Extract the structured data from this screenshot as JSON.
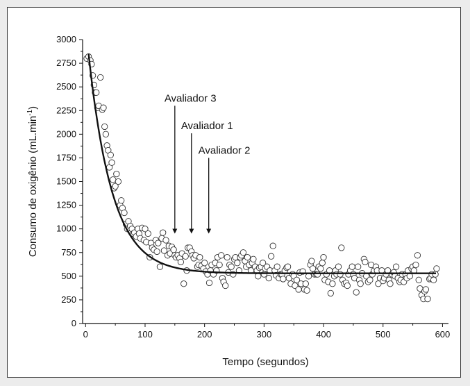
{
  "chart_data": {
    "type": "scatter",
    "title": "",
    "xlabel": "Tempo (segundos)",
    "ylabel_main": "Consumo de oxigênio (mL.min",
    "ylabel_sup": "-1",
    "ylabel_close": ")",
    "xlim": [
      -5,
      610
    ],
    "ylim": [
      0,
      3000
    ],
    "x_ticks": [
      0,
      100,
      200,
      300,
      400,
      500,
      600
    ],
    "y_ticks": [
      0,
      250,
      500,
      750,
      1000,
      1250,
      1500,
      1750,
      2000,
      2250,
      2500,
      2750,
      3000
    ],
    "grid": false,
    "fit_curve": {
      "baseline": 530,
      "amplitude": 2320,
      "tau": 40,
      "x_start": 5,
      "x_end": 590
    },
    "annotations": [
      {
        "text": "Avaliador 3",
        "x": 150,
        "y_top": 2300,
        "y_bottom": 950
      },
      {
        "text": "Avaliador 1",
        "x": 178,
        "y_top": 2010,
        "y_bottom": 950
      },
      {
        "text": "Avaliador 2",
        "x": 207,
        "y_top": 1750,
        "y_bottom": 950
      }
    ],
    "points": [
      [
        2,
        2800
      ],
      [
        5,
        2820
      ],
      [
        8,
        2780
      ],
      [
        10,
        2740
      ],
      [
        12,
        2620
      ],
      [
        14,
        2520
      ],
      [
        16,
        2440
      ],
      [
        18,
        2440
      ],
      [
        20,
        2280
      ],
      [
        22,
        2300
      ],
      [
        25,
        2600
      ],
      [
        28,
        2260
      ],
      [
        30,
        2280
      ],
      [
        32,
        2080
      ],
      [
        34,
        2000
      ],
      [
        36,
        1880
      ],
      [
        38,
        1830
      ],
      [
        40,
        1650
      ],
      [
        42,
        1780
      ],
      [
        44,
        1700
      ],
      [
        46,
        1520
      ],
      [
        48,
        1430
      ],
      [
        50,
        1450
      ],
      [
        52,
        1580
      ],
      [
        55,
        1500
      ],
      [
        58,
        1250
      ],
      [
        60,
        1300
      ],
      [
        62,
        1220
      ],
      [
        65,
        1170
      ],
      [
        68,
        1050
      ],
      [
        70,
        1000
      ],
      [
        72,
        1080
      ],
      [
        75,
        1030
      ],
      [
        78,
        1000
      ],
      [
        80,
        950
      ],
      [
        82,
        960
      ],
      [
        85,
        920
      ],
      [
        88,
        1000
      ],
      [
        90,
        950
      ],
      [
        92,
        900
      ],
      [
        95,
        1010
      ],
      [
        98,
        880
      ],
      [
        100,
        1000
      ],
      [
        102,
        860
      ],
      [
        105,
        950
      ],
      [
        108,
        700
      ],
      [
        110,
        850
      ],
      [
        112,
        800
      ],
      [
        115,
        780
      ],
      [
        118,
        880
      ],
      [
        120,
        760
      ],
      [
        122,
        850
      ],
      [
        125,
        600
      ],
      [
        128,
        900
      ],
      [
        130,
        960
      ],
      [
        132,
        770
      ],
      [
        135,
        880
      ],
      [
        138,
        720
      ],
      [
        140,
        820
      ],
      [
        142,
        740
      ],
      [
        145,
        810
      ],
      [
        148,
        780
      ],
      [
        150,
        720
      ],
      [
        152,
        700
      ],
      [
        155,
        720
      ],
      [
        158,
        690
      ],
      [
        160,
        650
      ],
      [
        162,
        740
      ],
      [
        165,
        420
      ],
      [
        168,
        710
      ],
      [
        170,
        560
      ],
      [
        172,
        800
      ],
      [
        175,
        800
      ],
      [
        178,
        760
      ],
      [
        180,
        720
      ],
      [
        182,
        690
      ],
      [
        185,
        720
      ],
      [
        188,
        600
      ],
      [
        190,
        620
      ],
      [
        192,
        700
      ],
      [
        195,
        610
      ],
      [
        198,
        580
      ],
      [
        200,
        640
      ],
      [
        202,
        550
      ],
      [
        205,
        520
      ],
      [
        208,
        430
      ],
      [
        210,
        560
      ],
      [
        212,
        620
      ],
      [
        215,
        520
      ],
      [
        218,
        640
      ],
      [
        220,
        560
      ],
      [
        222,
        700
      ],
      [
        225,
        620
      ],
      [
        228,
        720
      ],
      [
        230,
        480
      ],
      [
        232,
        440
      ],
      [
        235,
        400
      ],
      [
        238,
        700
      ],
      [
        240,
        540
      ],
      [
        242,
        620
      ],
      [
        245,
        600
      ],
      [
        248,
        520
      ],
      [
        250,
        680
      ],
      [
        252,
        700
      ],
      [
        255,
        640
      ],
      [
        258,
        560
      ],
      [
        260,
        700
      ],
      [
        262,
        720
      ],
      [
        265,
        750
      ],
      [
        268,
        660
      ],
      [
        270,
        600
      ],
      [
        272,
        700
      ],
      [
        275,
        620
      ],
      [
        278,
        560
      ],
      [
        280,
        640
      ],
      [
        282,
        680
      ],
      [
        285,
        600
      ],
      [
        288,
        560
      ],
      [
        290,
        500
      ],
      [
        292,
        590
      ],
      [
        295,
        600
      ],
      [
        298,
        640
      ],
      [
        300,
        520
      ],
      [
        302,
        580
      ],
      [
        305,
        600
      ],
      [
        308,
        480
      ],
      [
        310,
        560
      ],
      [
        312,
        710
      ],
      [
        315,
        820
      ],
      [
        318,
        560
      ],
      [
        320,
        510
      ],
      [
        322,
        600
      ],
      [
        325,
        480
      ],
      [
        328,
        520
      ],
      [
        330,
        520
      ],
      [
        332,
        470
      ],
      [
        335,
        560
      ],
      [
        338,
        590
      ],
      [
        340,
        600
      ],
      [
        342,
        480
      ],
      [
        345,
        420
      ],
      [
        348,
        520
      ],
      [
        350,
        500
      ],
      [
        352,
        400
      ],
      [
        355,
        460
      ],
      [
        358,
        360
      ],
      [
        360,
        540
      ],
      [
        362,
        420
      ],
      [
        365,
        550
      ],
      [
        368,
        360
      ],
      [
        370,
        420
      ],
      [
        372,
        350
      ],
      [
        375,
        500
      ],
      [
        378,
        620
      ],
      [
        380,
        660
      ],
      [
        382,
        580
      ],
      [
        385,
        520
      ],
      [
        388,
        520
      ],
      [
        390,
        520
      ],
      [
        392,
        600
      ],
      [
        395,
        580
      ],
      [
        398,
        640
      ],
      [
        400,
        700
      ],
      [
        402,
        460
      ],
      [
        405,
        520
      ],
      [
        408,
        440
      ],
      [
        410,
        560
      ],
      [
        412,
        320
      ],
      [
        415,
        420
      ],
      [
        418,
        500
      ],
      [
        420,
        560
      ],
      [
        422,
        520
      ],
      [
        425,
        600
      ],
      [
        428,
        520
      ],
      [
        430,
        800
      ],
      [
        432,
        460
      ],
      [
        435,
        420
      ],
      [
        438,
        430
      ],
      [
        440,
        400
      ],
      [
        442,
        520
      ],
      [
        445,
        560
      ],
      [
        448,
        600
      ],
      [
        450,
        520
      ],
      [
        452,
        480
      ],
      [
        455,
        330
      ],
      [
        458,
        600
      ],
      [
        460,
        460
      ],
      [
        462,
        420
      ],
      [
        465,
        530
      ],
      [
        468,
        680
      ],
      [
        470,
        650
      ],
      [
        472,
        500
      ],
      [
        475,
        440
      ],
      [
        478,
        460
      ],
      [
        480,
        620
      ],
      [
        482,
        520
      ],
      [
        485,
        560
      ],
      [
        488,
        600
      ],
      [
        490,
        560
      ],
      [
        492,
        420
      ],
      [
        495,
        480
      ],
      [
        498,
        560
      ],
      [
        500,
        450
      ],
      [
        502,
        480
      ],
      [
        505,
        520
      ],
      [
        508,
        560
      ],
      [
        510,
        460
      ],
      [
        512,
        420
      ],
      [
        515,
        520
      ],
      [
        518,
        540
      ],
      [
        520,
        500
      ],
      [
        522,
        600
      ],
      [
        525,
        480
      ],
      [
        528,
        440
      ],
      [
        530,
        460
      ],
      [
        532,
        520
      ],
      [
        535,
        440
      ],
      [
        538,
        520
      ],
      [
        540,
        480
      ],
      [
        542,
        560
      ],
      [
        545,
        500
      ],
      [
        548,
        580
      ],
      [
        550,
        600
      ],
      [
        552,
        560
      ],
      [
        555,
        620
      ],
      [
        558,
        720
      ],
      [
        560,
        460
      ],
      [
        562,
        370
      ],
      [
        565,
        300
      ],
      [
        568,
        260
      ],
      [
        570,
        340
      ],
      [
        572,
        360
      ],
      [
        575,
        260
      ],
      [
        578,
        470
      ],
      [
        580,
        480
      ],
      [
        582,
        520
      ],
      [
        585,
        460
      ],
      [
        588,
        520
      ],
      [
        590,
        580
      ]
    ]
  }
}
